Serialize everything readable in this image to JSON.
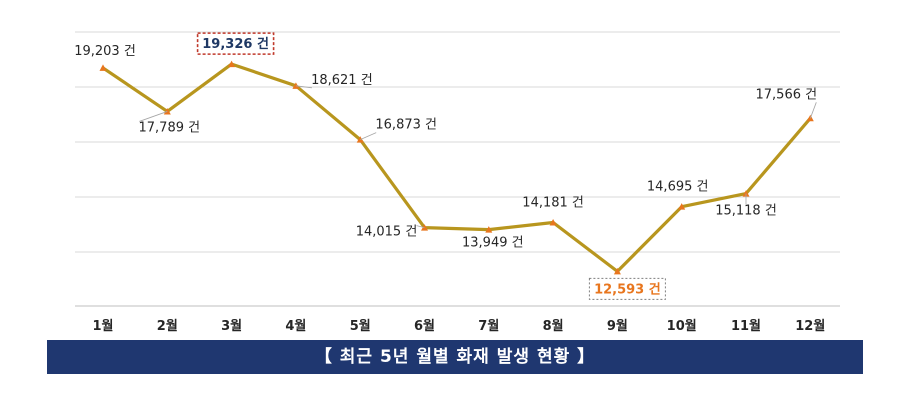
{
  "chart_data": {
    "type": "line",
    "categories": [
      "1월",
      "2월",
      "3월",
      "4월",
      "5월",
      "6월",
      "7월",
      "8월",
      "9월",
      "10월",
      "11월",
      "12월"
    ],
    "series": [
      {
        "values": [
          19203,
          17789,
          19326,
          18621,
          16873,
          14015,
          13949,
          14181,
          12593,
          14695,
          15118,
          17566
        ]
      }
    ],
    "data_labels": [
      "19,203 건",
      "17,789 건",
      "19,326 건",
      "18,621 건",
      "16,873 건",
      "14,015 건",
      "13,949 건",
      "14,181 건",
      "12,593 건",
      "14,695 건",
      "15,118 건",
      "17,566 건"
    ],
    "highlight_max_index": 2,
    "highlight_min_index": 8,
    "ylim": [
      11500,
      20500
    ],
    "grid": true,
    "title": "",
    "xlabel": "",
    "ylabel": ""
  },
  "colors": {
    "line": "#b8961e",
    "marker": "#e8761e",
    "max_label": "#1f3864",
    "max_box_border": "#c0392b",
    "min_label": "#e8761e",
    "min_box_border": "#7f7f7f",
    "grid": "#d9d9d9",
    "banner_bg": "#1f3770"
  },
  "caption": "【 최근 5년 월별 화재 발생 현황 】"
}
